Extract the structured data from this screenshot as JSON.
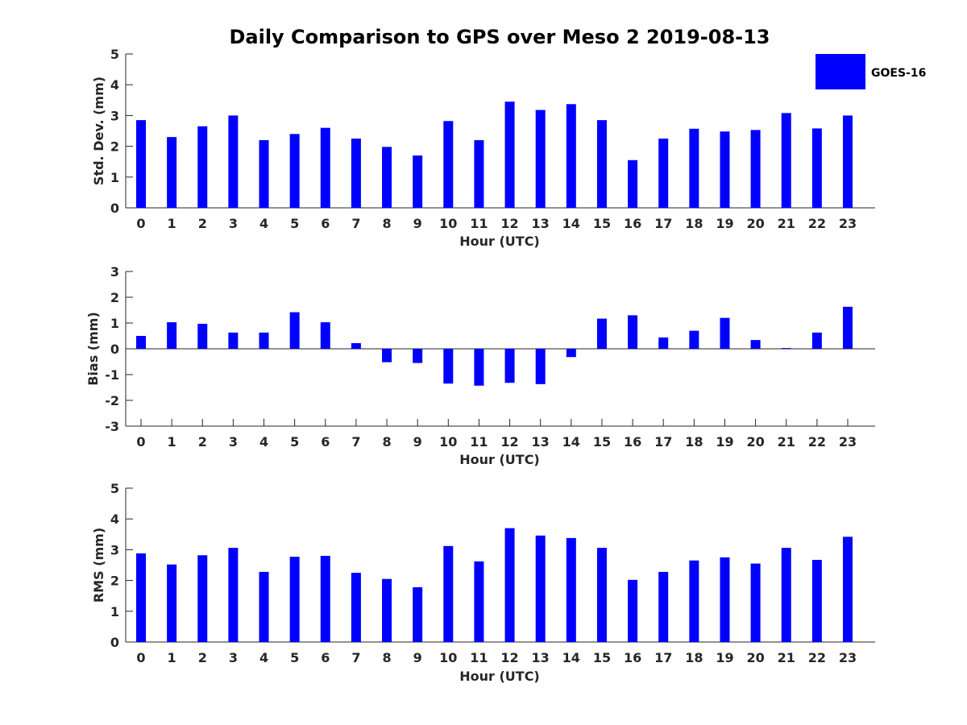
{
  "title": "Daily Comparison to GPS over Meso 2 2019-08-13",
  "legend": {
    "label": "GOES-16",
    "color": "#0000ff"
  },
  "chart_data": [
    {
      "type": "bar",
      "ylabel": "Std. Dev. (mm)",
      "xlabel": "Hour (UTC)",
      "ylim": [
        0,
        5
      ],
      "yticks": [
        "0",
        "1",
        "2",
        "3",
        "4",
        "5"
      ],
      "categories": [
        "0",
        "1",
        "2",
        "3",
        "4",
        "5",
        "6",
        "7",
        "8",
        "9",
        "10",
        "11",
        "12",
        "13",
        "14",
        "15",
        "16",
        "17",
        "18",
        "19",
        "20",
        "21",
        "22",
        "23"
      ],
      "series": [
        {
          "name": "GOES-16",
          "values": [
            2.85,
            2.3,
            2.65,
            3.0,
            2.2,
            2.4,
            2.6,
            2.25,
            1.98,
            1.7,
            2.82,
            2.2,
            3.45,
            3.18,
            3.37,
            2.85,
            1.55,
            2.25,
            2.57,
            2.48,
            2.53,
            3.08,
            2.58,
            3.0
          ]
        }
      ]
    },
    {
      "type": "bar",
      "ylabel": "Bias (mm)",
      "xlabel": "Hour (UTC)",
      "ylim": [
        -3,
        3
      ],
      "yticks": [
        "-3",
        "-2",
        "-1",
        "0",
        "1",
        "2",
        "3"
      ],
      "categories": [
        "0",
        "1",
        "2",
        "3",
        "4",
        "5",
        "6",
        "7",
        "8",
        "9",
        "10",
        "11",
        "12",
        "13",
        "14",
        "15",
        "16",
        "17",
        "18",
        "19",
        "20",
        "21",
        "22",
        "23"
      ],
      "series": [
        {
          "name": "GOES-16",
          "values": [
            0.5,
            1.03,
            0.97,
            0.63,
            0.63,
            1.42,
            1.03,
            0.22,
            -0.52,
            -0.55,
            -1.35,
            -1.43,
            -1.32,
            -1.37,
            -0.32,
            1.17,
            1.3,
            0.44,
            0.7,
            1.2,
            0.34,
            0.03,
            0.63,
            1.63
          ]
        }
      ]
    },
    {
      "type": "bar",
      "ylabel": "RMS (mm)",
      "xlabel": "Hour (UTC)",
      "ylim": [
        0,
        5
      ],
      "yticks": [
        "0",
        "1",
        "2",
        "3",
        "4",
        "5"
      ],
      "categories": [
        "0",
        "1",
        "2",
        "3",
        "4",
        "5",
        "6",
        "7",
        "8",
        "9",
        "10",
        "11",
        "12",
        "13",
        "14",
        "15",
        "16",
        "17",
        "18",
        "19",
        "20",
        "21",
        "22",
        "23"
      ],
      "series": [
        {
          "name": "GOES-16",
          "values": [
            2.88,
            2.52,
            2.82,
            3.06,
            2.28,
            2.77,
            2.8,
            2.25,
            2.05,
            1.78,
            3.12,
            2.62,
            3.7,
            3.46,
            3.38,
            3.06,
            2.02,
            2.28,
            2.65,
            2.75,
            2.55,
            3.06,
            2.67,
            3.42
          ]
        }
      ]
    }
  ]
}
